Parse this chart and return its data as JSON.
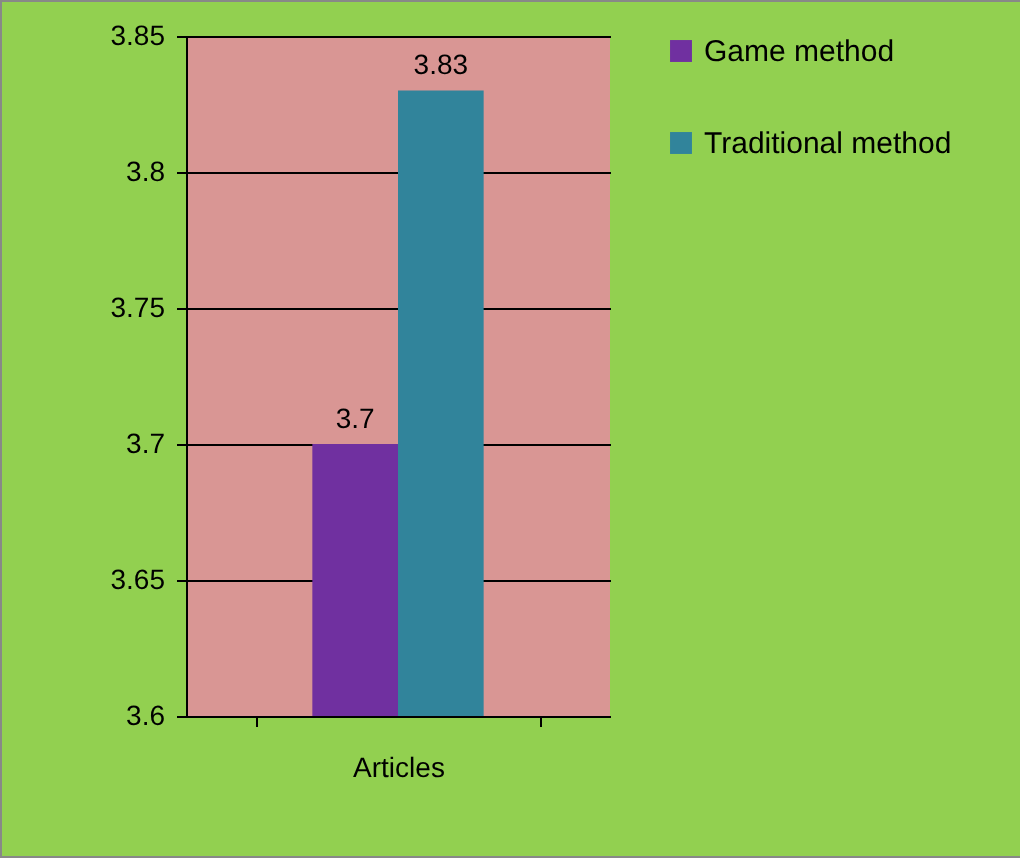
{
  "chart_data": {
    "type": "bar",
    "categories": [
      "Articles"
    ],
    "series": [
      {
        "name": "Game method",
        "color": "#7030a0",
        "values": [
          3.7
        ]
      },
      {
        "name": "Traditional method",
        "color": "#31849b",
        "values": [
          3.83
        ]
      }
    ],
    "ylim": [
      3.6,
      3.85
    ],
    "yticks": [
      3.6,
      3.65,
      3.7,
      3.75,
      3.8,
      3.85
    ],
    "grid": "y",
    "legend": "right",
    "data_labels": true
  }
}
